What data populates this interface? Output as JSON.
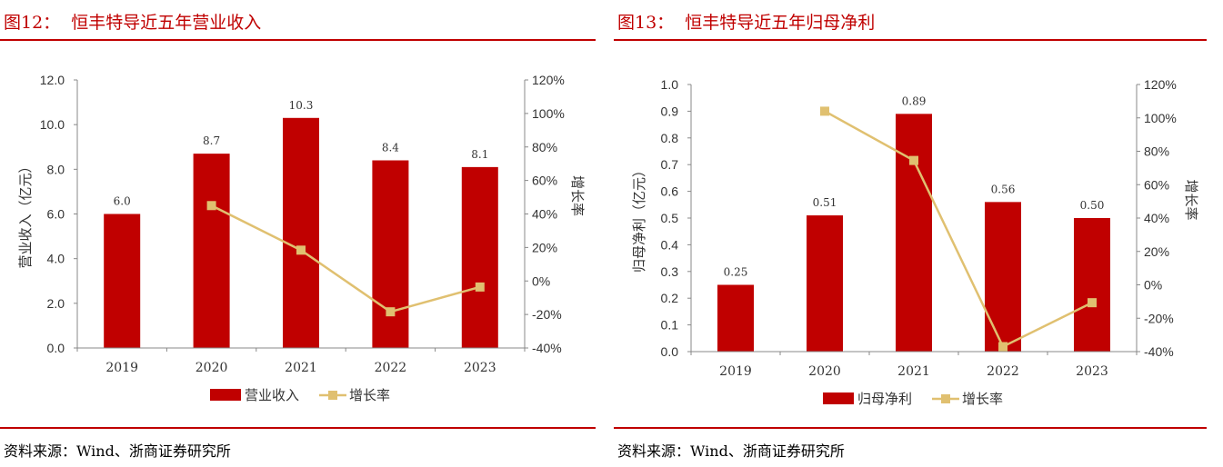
{
  "colors": {
    "bar": "#c00000",
    "line": "#e0c070",
    "accent": "#c00000"
  },
  "chart_data": [
    {
      "type": "bar+line",
      "title": "图12：  恒丰特导近五年营业收入",
      "source": "资料来源：Wind、浙商证券研究所",
      "categories": [
        "2019",
        "2020",
        "2021",
        "2022",
        "2023"
      ],
      "ylabel": "营业收入（亿元）",
      "y2label": "增长率",
      "ylim": [
        0,
        12
      ],
      "yticks": [
        "0.0",
        "2.0",
        "4.0",
        "6.0",
        "8.0",
        "10.0",
        "12.0"
      ],
      "y2lim": [
        -40,
        120
      ],
      "y2ticks": [
        "-40%",
        "-20%",
        "0%",
        "20%",
        "40%",
        "60%",
        "80%",
        "100%",
        "120%"
      ],
      "series": [
        {
          "name": "营业收入",
          "type": "bar",
          "values": [
            6.0,
            8.7,
            10.3,
            8.4,
            8.1
          ],
          "labels": [
            "6.0",
            "8.7",
            "10.3",
            "8.4",
            "8.1"
          ]
        },
        {
          "name": "增长率",
          "type": "line",
          "axis": "right",
          "values": [
            null,
            45,
            18.4,
            -18.4,
            -3.6
          ]
        }
      ],
      "legend": "bottom"
    },
    {
      "type": "bar+line",
      "title": "图13：  恒丰特导近五年归母净利",
      "source": "资料来源：Wind、浙商证券研究所",
      "categories": [
        "2019",
        "2020",
        "2021",
        "2022",
        "2023"
      ],
      "ylabel": "归母净利（亿元）",
      "y2label": "增长率",
      "ylim": [
        0,
        1.0
      ],
      "yticks": [
        "0.0",
        "0.1",
        "0.2",
        "0.3",
        "0.4",
        "0.5",
        "0.6",
        "0.7",
        "0.8",
        "0.9",
        "1.0"
      ],
      "y2lim": [
        -40,
        120
      ],
      "y2ticks": [
        "-40%",
        "-20%",
        "0%",
        "20%",
        "40%",
        "60%",
        "80%",
        "100%",
        "120%"
      ],
      "series": [
        {
          "name": "归母净利",
          "type": "bar",
          "values": [
            0.25,
            0.51,
            0.89,
            0.56,
            0.5
          ],
          "labels": [
            "0.25",
            "0.51",
            "0.89",
            "0.56",
            "0.50"
          ]
        },
        {
          "name": "增长率",
          "type": "line",
          "axis": "right",
          "values": [
            null,
            104,
            74.5,
            -37,
            -10.7
          ]
        }
      ],
      "legend": "bottom"
    }
  ]
}
